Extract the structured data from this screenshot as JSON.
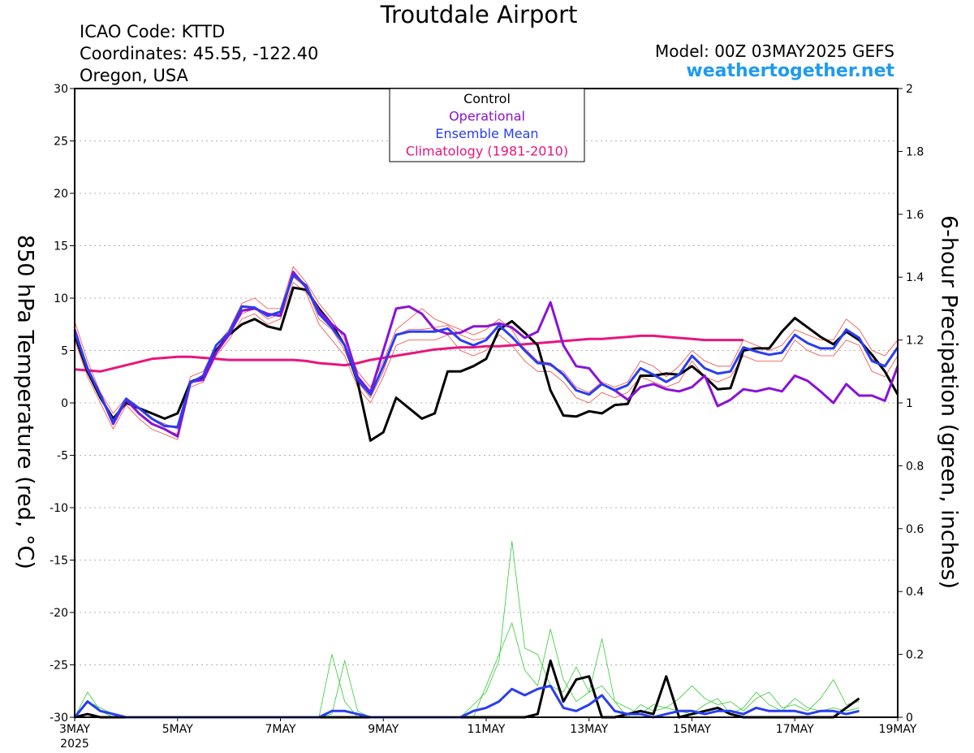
{
  "header": {
    "title": "Troutdale Airport",
    "icao": "ICAO Code: KTTD",
    "coords": "Coordinates: 45.55, -122.40",
    "location": "Oregon, USA",
    "model": "Model: 00Z 03MAY2025 GEFS",
    "site": "weathertogether.net"
  },
  "chart_data": {
    "type": "line",
    "title": "Troutdale Airport",
    "ylabel": "850 hPa Temperature (red, °C)",
    "y2label": "6-hour Precipation (green, inches)",
    "ylim": [
      -30,
      30
    ],
    "y2lim": [
      0,
      2
    ],
    "yticks": [
      -30,
      -25,
      -20,
      -15,
      -10,
      -5,
      0,
      5,
      10,
      15,
      20,
      25,
      30
    ],
    "y2ticks": [
      0,
      0.2,
      0.4,
      0.6,
      0.8,
      1,
      1.2,
      1.4,
      1.6,
      1.8,
      2
    ],
    "xlim": [
      0,
      64
    ],
    "xticks": [
      {
        "x": 0,
        "label": "3MAY",
        "sub": "2025"
      },
      {
        "x": 8,
        "label": "5MAY"
      },
      {
        "x": 16,
        "label": "7MAY"
      },
      {
        "x": 24,
        "label": "9MAY"
      },
      {
        "x": 32,
        "label": "11MAY"
      },
      {
        "x": 40,
        "label": "13MAY"
      },
      {
        "x": 48,
        "label": "15MAY"
      },
      {
        "x": 56,
        "label": "17MAY"
      },
      {
        "x": 64,
        "label": "19MAY"
      }
    ],
    "x_unit_note": "6-hour steps from 00Z 03MAY2025",
    "legend": {
      "position": "top-center",
      "entries": [
        {
          "label": "Control",
          "color": "#000000"
        },
        {
          "label": "Operational",
          "color": "#8a12d6"
        },
        {
          "label": "Ensemble Mean",
          "color": "#2a3df0"
        },
        {
          "label": "Climatology (1981-2010)",
          "color": "#e8157e"
        }
      ]
    },
    "colors": {
      "members_temp": "#f04a40",
      "members_precip": "#33cc33",
      "control": "#000000",
      "operational": "#8a12d6",
      "mean": "#2a3df0",
      "climatology": "#e8157e"
    },
    "series": [
      {
        "name": "Control",
        "axis": "temp",
        "values": [
          6.5,
          3,
          0.5,
          -1.5,
          0,
          -0.5,
          -1,
          -1.5,
          -1,
          2,
          2.5,
          5,
          6.5,
          7.5,
          8,
          7.3,
          7,
          11,
          10.8,
          9,
          7.5,
          5.5,
          2,
          -3.6,
          -2.8,
          0.5,
          -0.5,
          -1.5,
          -1,
          3,
          3,
          3.5,
          4.2,
          7,
          7.8,
          6.7,
          5.5,
          1.2,
          -1.2,
          -1.3,
          -0.8,
          -1,
          -0.2,
          -0.1,
          2.6,
          2.6,
          2.8,
          2.7,
          3.5,
          2.5,
          1.3,
          1.4,
          5,
          5.2,
          5.2,
          6.8,
          8.1,
          7.2,
          6.3,
          5.6,
          6.8,
          6,
          4.6,
          3,
          0.8
        ]
      },
      {
        "name": "Operational",
        "axis": "temp",
        "values": [
          7,
          3.2,
          0.8,
          -2,
          0.3,
          -1,
          -2,
          -2.5,
          -3.2,
          2,
          2.2,
          4.8,
          6.5,
          8.8,
          9,
          8.5,
          8.3,
          12.5,
          11,
          8.8,
          7.5,
          6.5,
          2.5,
          1,
          5,
          9,
          9.2,
          8.5,
          7,
          6.6,
          6.7,
          7.3,
          7.3,
          7.6,
          7.2,
          6.2,
          6.8,
          9.6,
          5.5,
          3.5,
          3.3,
          1.8,
          1.2,
          0.3,
          1.5,
          1.8,
          1.3,
          1.1,
          1.5,
          2.6,
          -0.3,
          0.3,
          1.3,
          1.1,
          1.4,
          1.1,
          2.6,
          2.1,
          1.1,
          0,
          1.8,
          0.7,
          0.7,
          0.2,
          3.5
        ]
      },
      {
        "name": "Ensemble Mean",
        "axis": "temp",
        "values": [
          6.8,
          3.3,
          0.7,
          -1.8,
          0.4,
          -0.5,
          -1.5,
          -2.2,
          -2.3,
          1.9,
          2.6,
          5.5,
          6.7,
          9.2,
          9.1,
          8.3,
          8.7,
          12.2,
          11.2,
          8.5,
          7.2,
          5.5,
          2.2,
          0.8,
          3.5,
          6.5,
          6.8,
          6.8,
          6.8,
          7.1,
          6,
          5.5,
          6,
          7.4,
          6.3,
          5,
          3.8,
          3.7,
          2.7,
          1.2,
          0.8,
          1.8,
          1.2,
          1.7,
          3.3,
          2.7,
          2,
          2.7,
          4.5,
          3.3,
          2.8,
          3,
          5.3,
          4.9,
          4.6,
          4.8,
          6.5,
          5.7,
          5.2,
          5.2,
          7,
          6.2,
          4,
          3.5,
          5.3
        ]
      },
      {
        "name": "Climatology (1981-2010)",
        "axis": "temp",
        "values": [
          3.2,
          3.1,
          3,
          3.3,
          3.6,
          3.9,
          4.2,
          4.3,
          4.4,
          4.4,
          4.3,
          4.2,
          4.1,
          4.1,
          4.1,
          4.1,
          4.1,
          4.1,
          4,
          3.8,
          3.7,
          3.6,
          3.8,
          4.1,
          4.3,
          4.5,
          4.7,
          4.9,
          5.1,
          5.2,
          5.3,
          5.3,
          5.4,
          5.4,
          5.5,
          5.6,
          5.7,
          5.8,
          5.9,
          6,
          6.1,
          6.1,
          6.2,
          6.3,
          6.4,
          6.4,
          6.3,
          6.2,
          6.1,
          6,
          6,
          6,
          6
        ]
      },
      {
        "name": "Control precip",
        "axis": "precip",
        "values": [
          0,
          0.01,
          0,
          0,
          0,
          0,
          0,
          0,
          0,
          0,
          0,
          0,
          0,
          0,
          0,
          0,
          0,
          0,
          0,
          0,
          0,
          0,
          0,
          0,
          0,
          0,
          0,
          0,
          0,
          0,
          0,
          0,
          0,
          0,
          0,
          0,
          0.01,
          0.18,
          0.05,
          0.12,
          0.13,
          0,
          0,
          0.01,
          0.02,
          0.01,
          0.13,
          0,
          0.01,
          0.02,
          0.03,
          0.01,
          0,
          0,
          0,
          0,
          0,
          0,
          0,
          0,
          0.03,
          0.06
        ]
      },
      {
        "name": "Ensemble Mean precip",
        "axis": "precip",
        "values": [
          0,
          0.05,
          0.02,
          0.01,
          0,
          0,
          0,
          0,
          0,
          0,
          0,
          0,
          0,
          0,
          0,
          0,
          0,
          0,
          0,
          0,
          0.02,
          0.02,
          0.01,
          0,
          0,
          0,
          0,
          0,
          0,
          0,
          0,
          0.02,
          0.03,
          0.05,
          0.09,
          0.07,
          0.09,
          0.1,
          0.03,
          0.02,
          0.04,
          0.07,
          0.02,
          0.01,
          0.01,
          0,
          0.01,
          0.02,
          0.02,
          0.01,
          0.02,
          0.02,
          0.01,
          0.03,
          0.02,
          0.02,
          0.02,
          0.01,
          0.02,
          0.02,
          0.01,
          0.02
        ]
      }
    ],
    "members_temp": [
      [
        7.8,
        4,
        1,
        -1,
        0.5,
        -0.5,
        -1.5,
        -2,
        -2.5,
        2.5,
        3,
        5.5,
        7,
        9.5,
        10,
        9,
        9,
        13,
        11.5,
        9.5,
        8,
        6,
        3,
        1.5,
        4,
        7,
        8,
        9,
        8,
        7.5,
        7,
        6.5,
        7,
        8,
        7,
        5,
        4,
        3.5,
        3,
        1.5,
        1,
        2,
        1.5,
        2,
        4,
        3.5,
        2.5,
        3.5,
        5,
        4,
        3.5,
        3.5,
        6,
        5.5,
        5,
        5.5,
        7,
        6.5,
        6,
        6,
        8,
        7,
        5,
        4.5,
        6
      ],
      [
        6,
        2.5,
        0,
        -2.5,
        -0.2,
        -1.5,
        -2.5,
        -3,
        -3.5,
        1.5,
        2,
        4.5,
        6,
        8,
        8.5,
        7.5,
        8,
        11.5,
        10.5,
        7.5,
        6,
        4.5,
        1.5,
        0,
        2.5,
        5.5,
        6,
        6,
        6,
        6.5,
        5,
        4.5,
        5,
        6.5,
        5.5,
        4,
        3,
        3,
        2,
        0.5,
        0,
        1,
        0.5,
        1,
        2.5,
        2,
        1.5,
        2,
        4,
        2.5,
        2,
        2.5,
        4.5,
        4,
        4,
        4,
        6,
        5,
        4.5,
        4.5,
        6,
        5.5,
        3,
        2.5,
        4.5
      ],
      [
        7,
        3.5,
        0.5,
        -2,
        0.2,
        -1,
        -2,
        -2.5,
        -3,
        2,
        2.5,
        5,
        6.5,
        8.5,
        9,
        8,
        8.5,
        12,
        11,
        8,
        7,
        5,
        2,
        0.5,
        3,
        6.5,
        7,
        7,
        7.2,
        7.4,
        6.5,
        6,
        6.2,
        7.4,
        6.3,
        5.2,
        4,
        3.8,
        2.7,
        1.3,
        0.8,
        1.8,
        1.3,
        1.7,
        3.3,
        2.7,
        2,
        2.8,
        4.5,
        3.3,
        2.8,
        3,
        5.3,
        4.9,
        4.6,
        4.8,
        6.5,
        5.7,
        5.2,
        5.2,
        7,
        6.2,
        4.2,
        3.5,
        5.3
      ]
    ],
    "members_precip": [
      [
        0,
        0.08,
        0.02,
        0,
        0,
        0,
        0,
        0,
        0,
        0,
        0,
        0,
        0,
        0,
        0,
        0,
        0,
        0,
        0,
        0,
        0.2,
        0.05,
        0,
        0,
        0,
        0,
        0,
        0,
        0,
        0,
        0,
        0,
        0.1,
        0.2,
        0.3,
        0.15,
        0.1,
        0.28,
        0.12,
        0.05,
        0.08,
        0.25,
        0.05,
        0,
        0.04,
        0.02,
        0.03,
        0.06,
        0.1,
        0.06,
        0.04,
        0.05,
        0.02,
        0.06,
        0.08,
        0.03,
        0.04,
        0.02,
        0.06,
        0.12,
        0.04,
        0.05
      ],
      [
        0,
        0.05,
        0.03,
        0.01,
        0,
        0,
        0,
        0,
        0,
        0,
        0,
        0,
        0,
        0,
        0,
        0,
        0,
        0,
        0,
        0,
        0.01,
        0.18,
        0.02,
        0,
        0,
        0,
        0,
        0,
        0,
        0,
        0,
        0.04,
        0.08,
        0.18,
        0.56,
        0.22,
        0.2,
        0.1,
        0.08,
        0.16,
        0.08,
        0.1,
        0.05,
        0.03,
        0.01,
        0.04,
        0.03,
        0.02,
        0.01,
        0.04,
        0.06,
        0.01,
        0.03,
        0.08,
        0.04,
        0.02,
        0.06,
        0.03,
        0.02,
        0.03,
        0.02,
        0.03
      ]
    ]
  }
}
